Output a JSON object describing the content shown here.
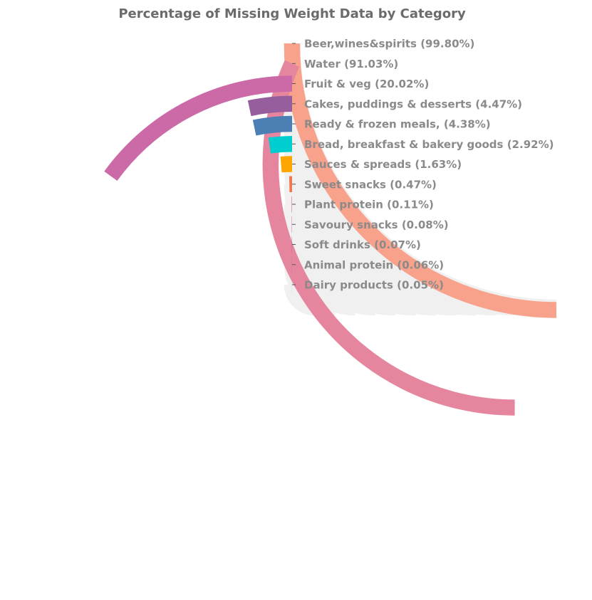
{
  "chart_data": {
    "type": "radial-bar",
    "title": "Percentage of Missing Weight Data by Category",
    "range": [
      0,
      100
    ],
    "track_color": "#f0f0f0",
    "categories": [
      {
        "label": "Beer,wines&spirits (99.80%)",
        "name": "Beer,wines&spirits",
        "value": 99.8,
        "color": "#f8a28c"
      },
      {
        "label": "Water (91.03%)",
        "name": "Water",
        "value": 91.03,
        "color": "#e5869e"
      },
      {
        "label": "Fruit & veg (20.02%)",
        "name": "Fruit & veg",
        "value": 20.02,
        "color": "#cc6aa8"
      },
      {
        "label": "Cakes, puddings & desserts (4.47%)",
        "name": "Cakes, puddings & desserts",
        "value": 4.47,
        "color": "#975e9e"
      },
      {
        "label": "Ready & frozen meals, (4.38%)",
        "name": "Ready & frozen meals,",
        "value": 4.38,
        "color": "#4c7fb4"
      },
      {
        "label": "Bread, breakfast & bakery goods (2.92%)",
        "name": "Bread, breakfast & bakery goods",
        "value": 2.92,
        "color": "#00cdd0"
      },
      {
        "label": "Sauces & spreads (1.63%)",
        "name": "Sauces & spreads",
        "value": 1.63,
        "color": "#ffa500"
      },
      {
        "label": "Sweet snacks (0.47%)",
        "name": "Sweet snacks",
        "value": 0.47,
        "color": "#f07850"
      },
      {
        "label": "Plant protein (0.11%)",
        "name": "Plant protein",
        "value": 0.11,
        "color": "#e5869e"
      },
      {
        "label": "Savoury snacks (0.08%)",
        "name": "Savoury snacks",
        "value": 0.08,
        "color": "#cc6aa8"
      },
      {
        "label": "Soft drinks (0.07%)",
        "name": "Soft drinks",
        "value": 0.07,
        "color": "#975e9e"
      },
      {
        "label": "Animal protein (0.06%)",
        "name": "Animal protein",
        "value": 0.06,
        "color": "#4c7fb4"
      },
      {
        "label": "Dairy products (0.05%)",
        "name": "Dairy products",
        "value": 0.05,
        "color": "#00cdd0"
      }
    ]
  }
}
